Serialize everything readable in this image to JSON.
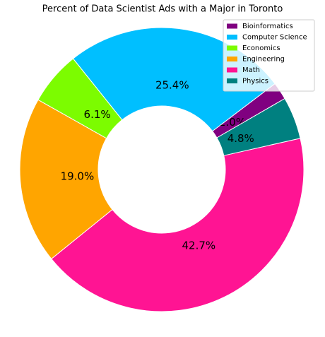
{
  "chart_data": {
    "type": "donut",
    "title": "Percent of Data Scientist Ads with a Major in Toronto",
    "categories": [
      "Bioinformatics",
      "Computer Science",
      "Economics",
      "Engineering",
      "Math",
      "Physics"
    ],
    "values": [
      2.0,
      25.4,
      6.1,
      19.0,
      42.7,
      4.8
    ],
    "value_labels": [
      "2.0%",
      "25.4%",
      "6.1%",
      "19.0%",
      "42.7%",
      "4.8%"
    ],
    "colors": [
      "#800080",
      "#00bfff",
      "#7cfc00",
      "#ffa500",
      "#ff1493",
      "#008080"
    ],
    "legend": "upper right"
  }
}
